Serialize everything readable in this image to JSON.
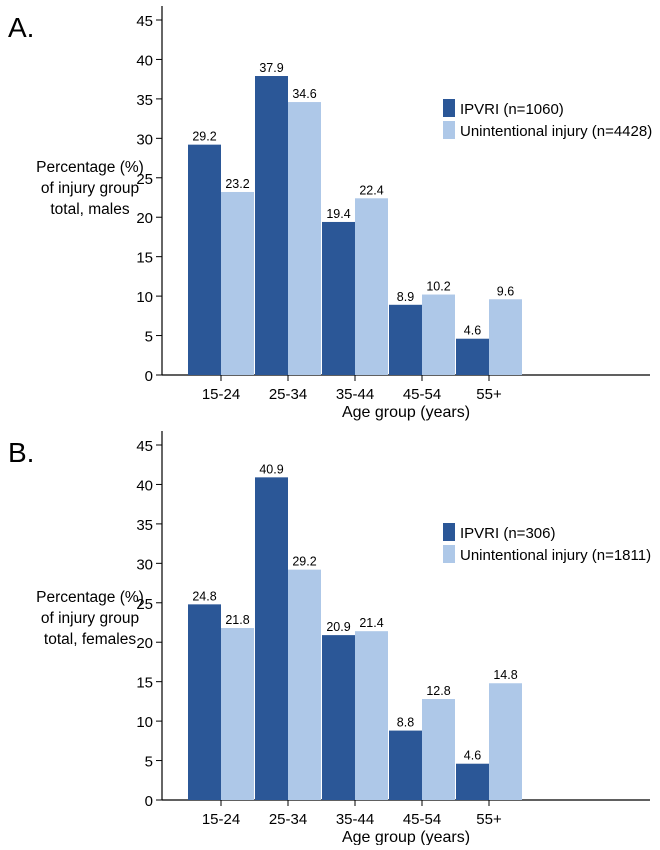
{
  "chart_data": [
    {
      "type": "bar",
      "panel_label": "A.",
      "categories": [
        "15-24",
        "25-34",
        "35-44",
        "45-54",
        "55+"
      ],
      "series": [
        {
          "name": "IPVRI (n=1060)",
          "color": "#2b5797",
          "values": [
            29.2,
            37.9,
            19.4,
            8.9,
            4.6
          ]
        },
        {
          "name": "Unintentional injury (n=4428)",
          "color": "#aec8e8",
          "values": [
            23.2,
            34.6,
            22.4,
            10.2,
            9.6
          ]
        }
      ],
      "value_labels": [
        [
          "29.2",
          "37.9",
          "19.4",
          "8.9",
          "4.6"
        ],
        [
          "23.2",
          "34.6",
          "22.4",
          "10.2",
          "9.6"
        ]
      ],
      "xlabel": "Age group (years)",
      "ylabel_lines": [
        "Percentage (%)",
        "of injury group",
        "total, males"
      ],
      "ylim": [
        0,
        45
      ],
      "yticks": [
        0,
        5,
        10,
        15,
        20,
        25,
        30,
        35,
        40,
        45
      ],
      "ytick_labels": [
        "0",
        "5",
        "10",
        "15",
        "20",
        "25",
        "30",
        "35",
        "40",
        "45"
      ],
      "grid": false,
      "legend_position": "right"
    },
    {
      "type": "bar",
      "panel_label": "B.",
      "categories": [
        "15-24",
        "25-34",
        "35-44",
        "45-54",
        "55+"
      ],
      "series": [
        {
          "name": "IPVRI (n=306)",
          "color": "#2b5797",
          "values": [
            24.8,
            40.9,
            20.9,
            8.8,
            4.6
          ]
        },
        {
          "name": "Unintentional injury (n=1811)",
          "color": "#aec8e8",
          "values": [
            21.8,
            29.2,
            21.4,
            12.8,
            14.8
          ]
        }
      ],
      "value_labels": [
        [
          "24.8",
          "40.9",
          "20.9",
          "8.8",
          "4.6"
        ],
        [
          "21.8",
          "29.2",
          "21.4",
          "12.8",
          "14.8"
        ]
      ],
      "xlabel": "Age group (years)",
      "ylabel_lines": [
        "Percentage (%)",
        "of injury group",
        "total, females"
      ],
      "ylim": [
        0,
        45
      ],
      "yticks": [
        0,
        5,
        10,
        15,
        20,
        25,
        30,
        35,
        40,
        45
      ],
      "ytick_labels": [
        "0",
        "5",
        "10",
        "15",
        "20",
        "25",
        "30",
        "35",
        "40",
        "45"
      ],
      "grid": false,
      "legend_position": "right"
    }
  ]
}
